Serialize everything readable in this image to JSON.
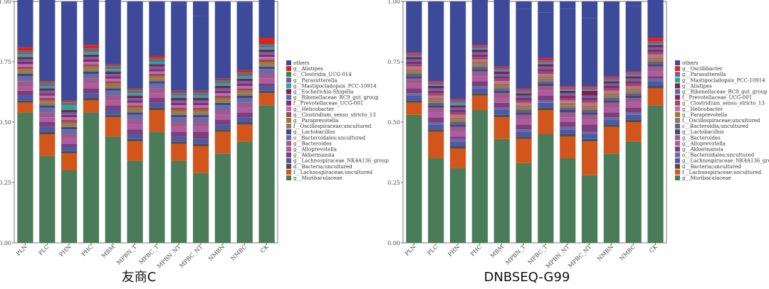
{
  "chart_data": [
    {
      "type": "bar",
      "stacked": true,
      "caption": "友商C",
      "ylim": [
        0,
        1
      ],
      "y_ticks": [
        "0.00",
        "0.25",
        "0.50",
        "0.75",
        "1.00"
      ],
      "categories": [
        "PLN",
        "PLC",
        "PHN",
        "PHC",
        "MBM",
        "MPBN_T",
        "MPBC_T",
        "MPBN_NT",
        "MPBC_NT",
        "NMBN",
        "NMBC",
        "CK"
      ],
      "legend_position": "right",
      "series": [
        {
          "name": "g__Muribaculaceae",
          "color": "#4a7c59",
          "values": [
            0.54,
            0.36,
            0.3,
            0.54,
            0.44,
            0.34,
            0.46,
            0.34,
            0.29,
            0.37,
            0.42,
            0.57
          ]
        },
        {
          "name": "f__Lachnospiraceae;uncultured",
          "color": "#d2561b",
          "values": [
            0.04,
            0.09,
            0.07,
            0.05,
            0.08,
            0.08,
            0.09,
            0.07,
            0.11,
            0.09,
            0.07,
            0.05
          ]
        },
        {
          "name": "d__Bacteria;uncultured",
          "color": "#5a4a42",
          "values": [
            0.01,
            0.01,
            0.01,
            0.01,
            0.01,
            0.01,
            0.01,
            0.01,
            0.01,
            0.01,
            0.01,
            0.01
          ]
        },
        {
          "name": "g__Lachnospiraceae_NK4A136_group",
          "color": "#4b5aa6",
          "values": [
            0.02,
            0.02,
            0.02,
            0.02,
            0.02,
            0.02,
            0.02,
            0.02,
            0.02,
            0.02,
            0.02,
            0.02
          ]
        },
        {
          "name": "g__Akkermansia",
          "color": "#7b3f7a",
          "values": [
            0.02,
            0.02,
            0.01,
            0.02,
            0.02,
            0.02,
            0.02,
            0.02,
            0.03,
            0.02,
            0.02,
            0.01
          ]
        },
        {
          "name": "g__Alloprevotella",
          "color": "#b05aa0",
          "values": [
            0.02,
            0.02,
            0.02,
            0.02,
            0.02,
            0.02,
            0.02,
            0.02,
            0.02,
            0.02,
            0.02,
            0.02
          ]
        },
        {
          "name": "g__Bacteroides",
          "color": "#a05a8a",
          "values": [
            0.02,
            0.02,
            0.02,
            0.02,
            0.02,
            0.02,
            0.02,
            0.02,
            0.02,
            0.02,
            0.02,
            0.02
          ]
        },
        {
          "name": "o__Bacteroidales;uncultured",
          "color": "#6a6aa8",
          "values": [
            0.02,
            0.02,
            0.02,
            0.02,
            0.02,
            0.02,
            0.02,
            0.02,
            0.02,
            0.02,
            0.02,
            0.02
          ]
        },
        {
          "name": "g__Lactobacillus",
          "color": "#3f4a7a",
          "values": [
            0.01,
            0.01,
            0.01,
            0.01,
            0.01,
            0.01,
            0.01,
            0.01,
            0.01,
            0.01,
            0.01,
            0.01
          ]
        },
        {
          "name": "f__Oscillospiraceae;uncultured",
          "color": "#8a7a6a",
          "values": [
            0.01,
            0.01,
            0.01,
            0.01,
            0.01,
            0.01,
            0.01,
            0.01,
            0.01,
            0.01,
            0.01,
            0.01
          ]
        },
        {
          "name": "g__Paraprevotella",
          "color": "#a0782e",
          "values": [
            0.01,
            0.01,
            0.01,
            0.01,
            0.01,
            0.01,
            0.01,
            0.01,
            0.01,
            0.01,
            0.01,
            0.01
          ]
        },
        {
          "name": "g__Clostridium_sensu_stricto_13",
          "color": "#9a4a5a",
          "values": [
            0.01,
            0.01,
            0.01,
            0.01,
            0.01,
            0.01,
            0.01,
            0.01,
            0.01,
            0.01,
            0.01,
            0.01
          ]
        },
        {
          "name": "g__Helicobacter",
          "color": "#c06ab0",
          "values": [
            0.01,
            0.01,
            0.01,
            0.01,
            0.01,
            0.01,
            0.01,
            0.01,
            0.01,
            0.01,
            0.01,
            0.01
          ]
        },
        {
          "name": "f__Prevotellaceae_UCG-001",
          "color": "#8a2a6a",
          "values": [
            0.01,
            0.01,
            0.01,
            0.01,
            0.01,
            0.01,
            0.01,
            0.01,
            0.01,
            0.01,
            0.01,
            0.01
          ]
        },
        {
          "name": "g__Rikenellaceae_RC9_gut_group",
          "color": "#5a6aaa",
          "values": [
            0.01,
            0.01,
            0.01,
            0.01,
            0.01,
            0.01,
            0.01,
            0.01,
            0.01,
            0.01,
            0.01,
            0.01
          ]
        },
        {
          "name": "g__Escherichia-Shigella",
          "color": "#8a1a4a",
          "values": [
            0.01,
            0.01,
            0.01,
            0.01,
            0.01,
            0.01,
            0.01,
            0.01,
            0.01,
            0.01,
            0.01,
            0.01
          ]
        },
        {
          "name": "g__Mastigocladopsis_PCC-10914",
          "color": "#2aa890",
          "values": [
            0.01,
            0.01,
            0.02,
            0.01,
            0.01,
            0.01,
            0.01,
            0.01,
            0.01,
            0.01,
            0.01,
            0.01
          ]
        },
        {
          "name": "g__Parasutterella",
          "color": "#7a5a9a",
          "values": [
            0.01,
            0.01,
            0.01,
            0.01,
            0.01,
            0.01,
            0.01,
            0.01,
            0.01,
            0.01,
            0.01,
            0.01
          ]
        },
        {
          "name": "c__Clostridia_UCG-014",
          "color": "#2a8a4a",
          "values": [
            0.005,
            0.005,
            0.005,
            0.005,
            0.005,
            0.005,
            0.005,
            0.005,
            0.005,
            0.005,
            0.005,
            0.005
          ]
        },
        {
          "name": "g__Alistipes",
          "color": "#e0201a",
          "values": [
            0.015,
            0.005,
            0.005,
            0.015,
            0.005,
            0.005,
            0.01,
            0.005,
            0.005,
            0.005,
            0.01,
            0.025
          ]
        },
        {
          "name": "others",
          "color": "#3d4a9a",
          "values": [
            0.21,
            0.34,
            0.4,
            0.2,
            0.28,
            0.36,
            0.2,
            0.36,
            0.31,
            0.32,
            0.28,
            0.21
          ]
        }
      ],
      "legend_order": [
        "others",
        "g__Alistipes",
        "c__Clostridia_UCG-014",
        "g__Parasutterella",
        "g__Mastigocladopsis_PCC-10914",
        "g__Escherichia-Shigella",
        "g__Rikenellaceae_RC9_gut_group",
        "f__Prevotellaceae_UCG-001",
        "g__Helicobacter",
        "g__Clostridium_sensu_stricto_13",
        "g__Paraprevotella",
        "f__Oscillospiraceae;uncultured",
        "g__Lactobacillus",
        "o__Bacteroidales;uncultured",
        "g__Bacteroides",
        "g__Alloprevotella",
        "g__Akkermansia",
        "g__Lachnospiraceae_NK4A136_group",
        "d__Bacteria;uncultured",
        "f__Lachnospiraceae;uncultured",
        "g__Muribaculaceae"
      ]
    },
    {
      "type": "bar",
      "stacked": true,
      "caption": "DNBSEQ-G99",
      "ylim": [
        0,
        1
      ],
      "y_ticks": [
        "0.00",
        "0.25",
        "0.50",
        "0.75",
        "1.00"
      ],
      "categories": [
        "PLN",
        "PLC",
        "PHN",
        "PHC",
        "MBM",
        "MPBN_T",
        "MPBC_T",
        "MPBN_NT",
        "MPBC_NT",
        "NMBN",
        "NMBC",
        "CK"
      ],
      "legend_position": "right",
      "series": [
        {
          "name": "g__Muribaculaceae",
          "color": "#4a7c59",
          "values": [
            0.53,
            0.35,
            0.31,
            0.55,
            0.43,
            0.33,
            0.45,
            0.35,
            0.28,
            0.37,
            0.42,
            0.57
          ]
        },
        {
          "name": "f__Lachnospiraceae;uncultured",
          "color": "#d2561b",
          "values": [
            0.05,
            0.11,
            0.08,
            0.06,
            0.09,
            0.1,
            0.1,
            0.09,
            0.14,
            0.11,
            0.08,
            0.07
          ]
        },
        {
          "name": "d__Bacteria;uncultured",
          "color": "#5a4a42",
          "values": [
            0.01,
            0.01,
            0.01,
            0.01,
            0.01,
            0.01,
            0.01,
            0.01,
            0.01,
            0.01,
            0.01,
            0.01
          ]
        },
        {
          "name": "g__Lachnospiraceae_NK4A136_group",
          "color": "#4b5aa6",
          "values": [
            0.02,
            0.02,
            0.02,
            0.02,
            0.02,
            0.02,
            0.02,
            0.02,
            0.02,
            0.02,
            0.02,
            0.02
          ]
        },
        {
          "name": "o__Bacteroidales;uncultured",
          "color": "#6a6aa8",
          "values": [
            0.01,
            0.01,
            0.01,
            0.01,
            0.01,
            0.01,
            0.01,
            0.01,
            0.01,
            0.01,
            0.01,
            0.01
          ]
        },
        {
          "name": "g__Akkermansia",
          "color": "#7b3f7a",
          "values": [
            0.02,
            0.02,
            0.01,
            0.02,
            0.02,
            0.02,
            0.02,
            0.02,
            0.03,
            0.02,
            0.02,
            0.01
          ]
        },
        {
          "name": "g__Alloprevotella",
          "color": "#b05aa0",
          "values": [
            0.02,
            0.02,
            0.02,
            0.02,
            0.02,
            0.02,
            0.02,
            0.02,
            0.02,
            0.02,
            0.02,
            0.02
          ]
        },
        {
          "name": "g__Bacteroides",
          "color": "#a05a8a",
          "values": [
            0.02,
            0.02,
            0.02,
            0.02,
            0.02,
            0.02,
            0.02,
            0.02,
            0.02,
            0.02,
            0.02,
            0.02
          ]
        },
        {
          "name": "g__Lactobacillus",
          "color": "#3f4a7a",
          "values": [
            0.01,
            0.01,
            0.01,
            0.01,
            0.01,
            0.01,
            0.01,
            0.01,
            0.01,
            0.01,
            0.01,
            0.01
          ]
        },
        {
          "name": "c__Bacteroidia;uncultured",
          "color": "#6a5a8a",
          "values": [
            0.01,
            0.01,
            0.01,
            0.01,
            0.01,
            0.01,
            0.01,
            0.01,
            0.01,
            0.01,
            0.01,
            0.01
          ]
        },
        {
          "name": "f__Oscillospiraceae;uncultured",
          "color": "#8a7a6a",
          "values": [
            0.01,
            0.01,
            0.01,
            0.01,
            0.01,
            0.01,
            0.01,
            0.01,
            0.01,
            0.01,
            0.01,
            0.01
          ]
        },
        {
          "name": "g__Paraprevotella",
          "color": "#a0782e",
          "values": [
            0.01,
            0.01,
            0.01,
            0.01,
            0.01,
            0.01,
            0.01,
            0.01,
            0.01,
            0.01,
            0.01,
            0.01
          ]
        },
        {
          "name": "g__Helicobacter",
          "color": "#c06ab0",
          "values": [
            0.01,
            0.01,
            0.01,
            0.01,
            0.01,
            0.01,
            0.01,
            0.01,
            0.01,
            0.01,
            0.01,
            0.01
          ]
        },
        {
          "name": "g__Clostridium_sensu_stricto_13",
          "color": "#9a4a5a",
          "values": [
            0.01,
            0.01,
            0.01,
            0.01,
            0.01,
            0.01,
            0.01,
            0.01,
            0.01,
            0.01,
            0.01,
            0.01
          ]
        },
        {
          "name": "f__Prevotellaceae_UCG-001",
          "color": "#8a2a6a",
          "values": [
            0.01,
            0.01,
            0.01,
            0.01,
            0.01,
            0.01,
            0.01,
            0.01,
            0.01,
            0.01,
            0.01,
            0.01
          ]
        },
        {
          "name": "g__Rikenellaceae_RC9_gut_group",
          "color": "#5a6aaa",
          "values": [
            0.01,
            0.01,
            0.01,
            0.01,
            0.01,
            0.01,
            0.01,
            0.01,
            0.01,
            0.01,
            0.01,
            0.01
          ]
        },
        {
          "name": "g__Alistipes",
          "color": "#8a1a4a",
          "values": [
            0.01,
            0.01,
            0.01,
            0.01,
            0.01,
            0.01,
            0.01,
            0.01,
            0.02,
            0.01,
            0.01,
            0.01
          ]
        },
        {
          "name": "g__Mastigocladopsis_PCC-10914",
          "color": "#2aa890",
          "values": [
            0.005,
            0.005,
            0.01,
            0.005,
            0.005,
            0.005,
            0.005,
            0.005,
            0.005,
            0.005,
            0.005,
            0.005
          ]
        },
        {
          "name": "g__Parasutterella",
          "color": "#7a5a9a",
          "values": [
            0.01,
            0.01,
            0.01,
            0.01,
            0.01,
            0.01,
            0.01,
            0.01,
            0.01,
            0.01,
            0.01,
            0.01
          ]
        },
        {
          "name": "g__Oscillibacter",
          "color": "#e0201a",
          "values": [
            0.005,
            0.005,
            0.005,
            0.005,
            0.005,
            0.005,
            0.01,
            0.005,
            0.005,
            0.005,
            0.005,
            0.015
          ]
        },
        {
          "name": "others",
          "color": "#3d4a9a",
          "values": [
            0.21,
            0.33,
            0.39,
            0.2,
            0.29,
            0.33,
            0.19,
            0.32,
            0.28,
            0.31,
            0.27,
            0.19
          ]
        }
      ],
      "legend_order": [
        "others",
        "g__Oscillibacter",
        "g__Parasutterella",
        "g__Mastigocladopsis_PCC-10914",
        "g__Alistipes",
        "g__Rikenellaceae_RC9_gut_group",
        "f__Prevotellaceae_UCG-001",
        "g__Clostridium_sensu_stricto_13",
        "g__Helicobacter",
        "g__Paraprevotella",
        "f__Oscillospiraceae;uncultured",
        "c__Bacteroidia;uncultured",
        "g__Lactobacillus",
        "g__Bacteroides",
        "g__Alloprevotella",
        "g__Akkermansia",
        "o__Bacteroidales;uncultured",
        "g__Lachnospiraceae_NK4A136_group",
        "d__Bacteria;uncultured",
        "f__Lachnospiraceae;uncultured",
        "g__Muribaculaceae"
      ]
    }
  ]
}
